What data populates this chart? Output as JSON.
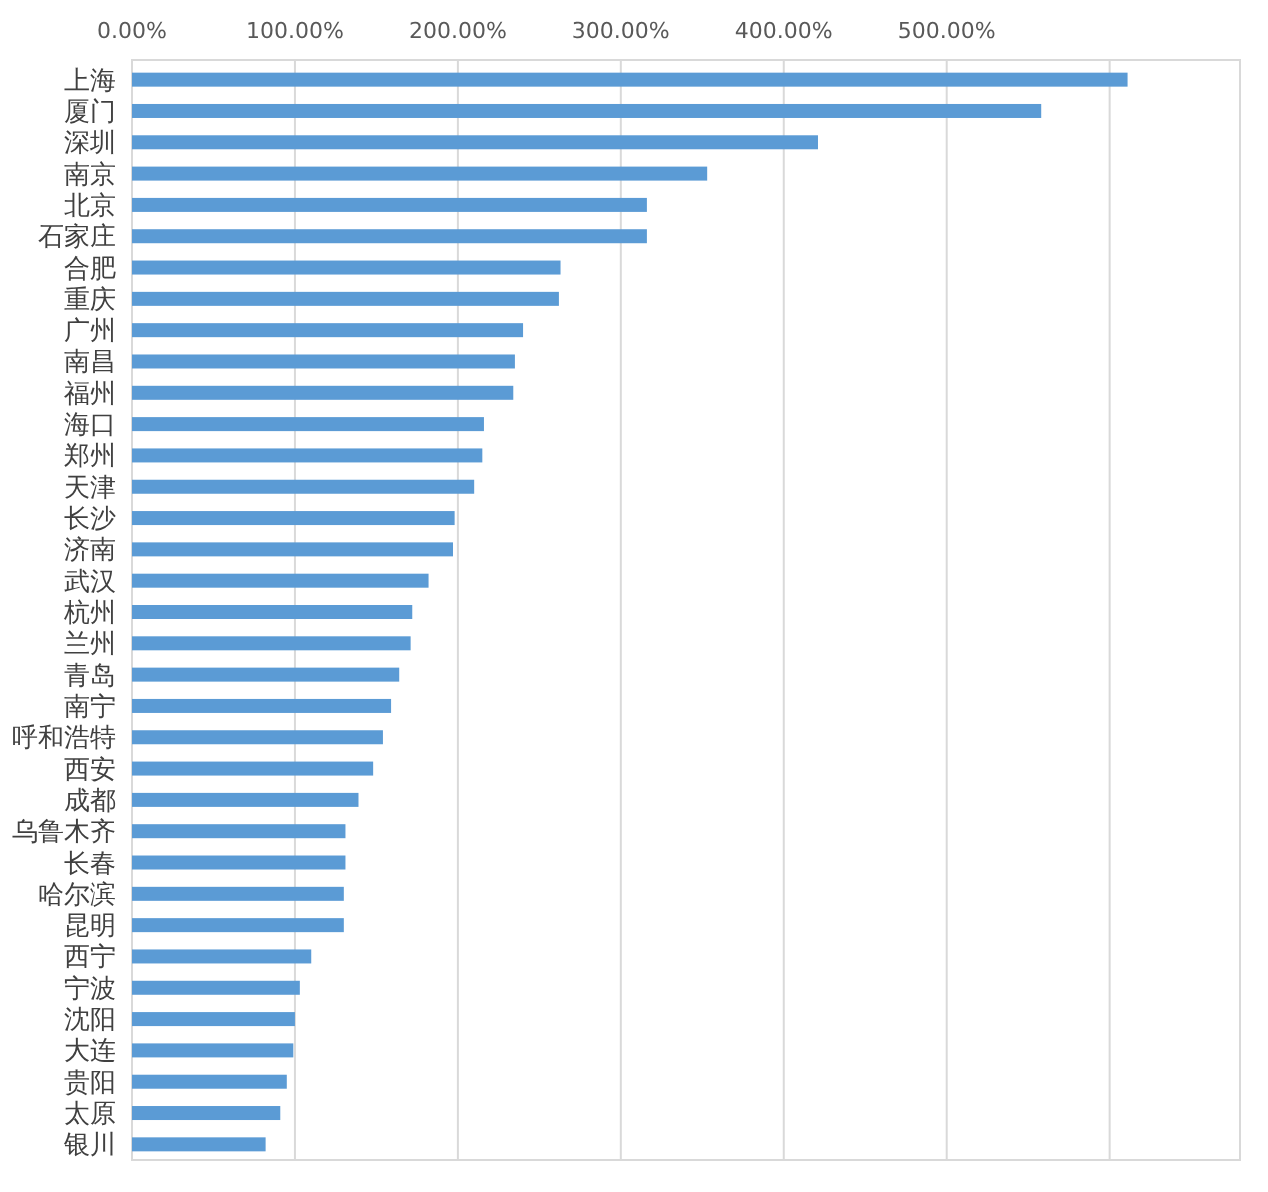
{
  "chart_data": {
    "type": "bar",
    "orientation": "horizontal",
    "categories": [
      "上海",
      "厦门",
      "深圳",
      "南京",
      "北京",
      "石家庄",
      "合肥",
      "重庆",
      "广州",
      "南昌",
      "福州",
      "海口",
      "郑州",
      "天津",
      "长沙",
      "济南",
      "武汉",
      "杭州",
      "兰州",
      "青岛",
      "南宁",
      "呼和浩特",
      "西安",
      "成都",
      "乌鲁木齐",
      "长春",
      "哈尔滨",
      "昆明",
      "西宁",
      "宁波",
      "沈阳",
      "大连",
      "贵阳",
      "太原",
      "银川"
    ],
    "values": [
      611,
      558,
      421,
      353,
      316,
      316,
      263,
      262,
      240,
      235,
      234,
      216,
      215,
      210,
      198,
      197,
      182,
      172,
      171,
      164,
      159,
      154,
      148,
      139,
      131,
      131,
      130,
      130,
      110,
      103,
      100,
      99,
      95,
      91,
      82
    ],
    "color": "#5b9bd5",
    "xlim": [
      0,
      680
    ],
    "xticks": [
      {
        "value": 0,
        "label": "0.00%"
      },
      {
        "value": 100,
        "label": "100.00%"
      },
      {
        "value": 200,
        "label": "200.00%"
      },
      {
        "value": 300,
        "label": "300.00%"
      },
      {
        "value": 400,
        "label": "400.00%"
      },
      {
        "value": 500,
        "label": "500.00%"
      },
      {
        "value": 600,
        "label": null
      }
    ],
    "grid": "x"
  }
}
